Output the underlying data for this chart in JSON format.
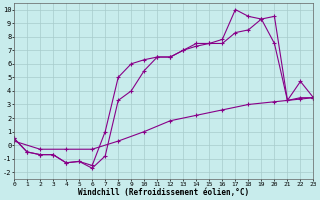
{
  "xlabel": "Windchill (Refroidissement éolien,°C)",
  "bg_color": "#c8ecec",
  "line_color": "#880088",
  "grid_color": "#a8cccc",
  "xlim": [
    0,
    23
  ],
  "ylim": [
    -2.5,
    10.5
  ],
  "xticks": [
    0,
    1,
    2,
    3,
    4,
    5,
    6,
    7,
    8,
    9,
    10,
    11,
    12,
    13,
    14,
    15,
    16,
    17,
    18,
    19,
    20,
    21,
    22,
    23
  ],
  "yticks": [
    -2,
    -1,
    0,
    1,
    2,
    3,
    4,
    5,
    6,
    7,
    8,
    9,
    10
  ],
  "line1_x": [
    0,
    1,
    2,
    3,
    4,
    5,
    6,
    7,
    8,
    9,
    10,
    11,
    12,
    13,
    14,
    15,
    16,
    17,
    18,
    19,
    20,
    21,
    22,
    23
  ],
  "line1_y": [
    0.5,
    -0.5,
    -0.7,
    -0.7,
    -1.3,
    -1.2,
    -1.5,
    1.0,
    5.0,
    6.0,
    6.3,
    6.5,
    6.5,
    7.0,
    7.3,
    7.5,
    7.8,
    10.0,
    9.5,
    9.3,
    7.5,
    3.3,
    3.5,
    3.5
  ],
  "line2_x": [
    0,
    1,
    2,
    3,
    4,
    5,
    6,
    7,
    8,
    9,
    10,
    11,
    12,
    13,
    14,
    15,
    16,
    17,
    18,
    19,
    20,
    21,
    22,
    23
  ],
  "line2_y": [
    0.5,
    -0.5,
    -0.7,
    -0.7,
    -1.3,
    -1.2,
    -1.7,
    -0.8,
    3.3,
    4.0,
    5.5,
    6.5,
    6.5,
    7.0,
    7.5,
    7.5,
    7.5,
    8.3,
    8.5,
    9.3,
    9.5,
    3.3,
    4.7,
    3.5
  ],
  "line3_x": [
    0,
    2,
    4,
    6,
    8,
    10,
    12,
    14,
    16,
    18,
    20,
    22,
    23
  ],
  "line3_y": [
    0.3,
    -0.3,
    -0.3,
    -0.3,
    0.3,
    1.0,
    1.8,
    2.2,
    2.6,
    3.0,
    3.2,
    3.4,
    3.5
  ]
}
